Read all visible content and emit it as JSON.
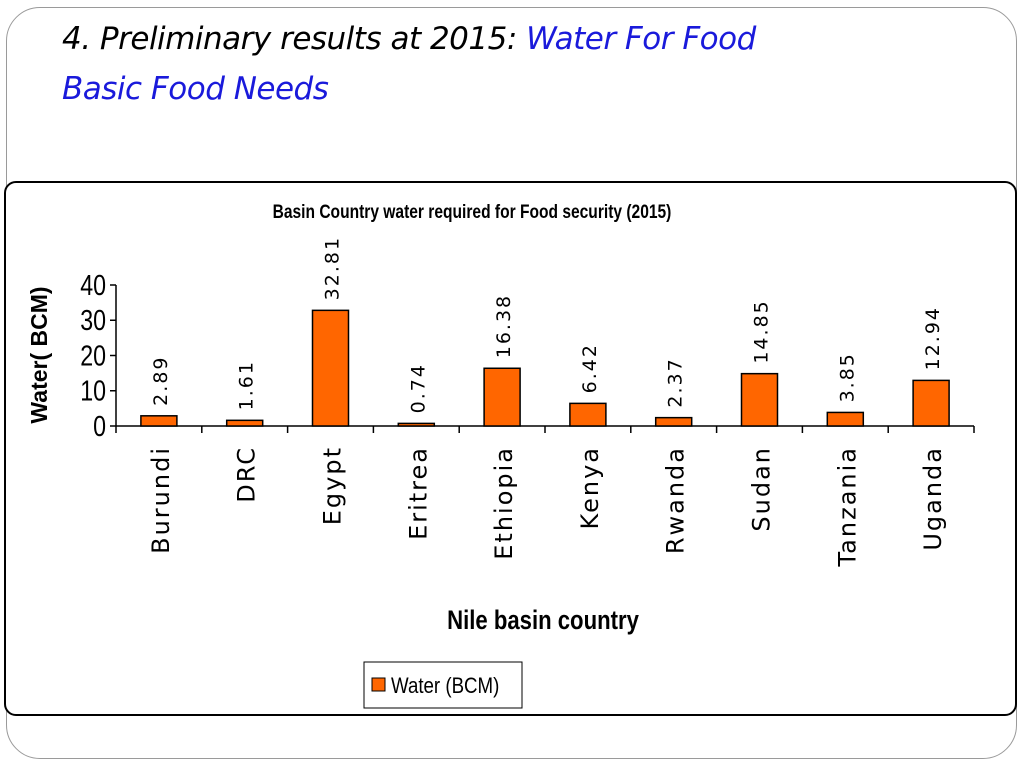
{
  "slide": {
    "title_prefix": "4. Preliminary results at 2015: ",
    "title_highlight_line1": "Water For Food",
    "title_highlight_line2": "Basic Food Needs",
    "accent_color": "#1a1adb"
  },
  "chart_data": {
    "type": "bar",
    "title": "Basin Country water required for Food security (2015)",
    "xlabel": "Nile basin country",
    "ylabel": "Water( BCM)",
    "ylim": [
      0,
      40
    ],
    "yticks": [
      0,
      10,
      20,
      30,
      40
    ],
    "categories": [
      "Burundi",
      "DRC",
      "Egypt",
      "Eritrea",
      "Ethiopia",
      "Kenya",
      "Rwanda",
      "Sudan",
      "Tanzania",
      "Uganda"
    ],
    "series": [
      {
        "name": "Water (BCM)",
        "values": [
          2.89,
          1.61,
          32.81,
          0.74,
          16.38,
          6.42,
          2.37,
          14.85,
          3.85,
          12.94
        ],
        "color": "#ff6600"
      }
    ],
    "data_labels": [
      "2.89",
      "1.61",
      "32.81",
      "0.74",
      "16.38",
      "6.42",
      "2.37",
      "14.85",
      "3.85",
      "12.94"
    ],
    "grid": false,
    "legend_position": "bottom-center"
  }
}
